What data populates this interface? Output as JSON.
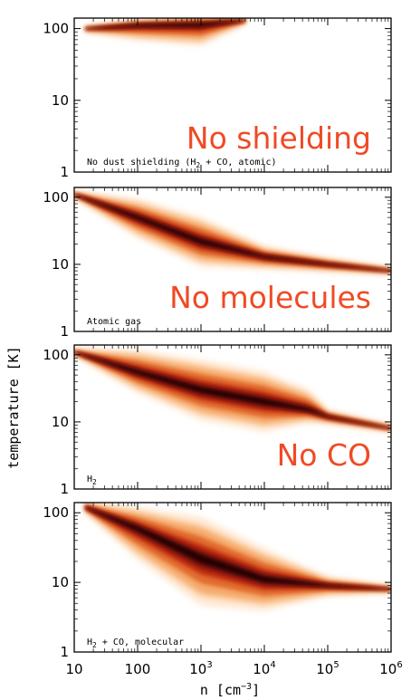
{
  "chart_data": {
    "type": "heatmap",
    "xlabel": "n [cm",
    "xlabel_sup": "−3",
    "xlabel_close": "]",
    "ylabel": "temperature [K]",
    "x_scale": "log",
    "y_scale": "log",
    "xlim": [
      10,
      1000000
    ],
    "ylim": [
      1,
      140
    ],
    "x_ticks": [
      {
        "value": 10,
        "base": "10",
        "exp": ""
      },
      {
        "value": 100,
        "base": "100",
        "exp": ""
      },
      {
        "value": 1000,
        "base": "10",
        "exp": "3"
      },
      {
        "value": 10000,
        "base": "10",
        "exp": "4"
      },
      {
        "value": 100000,
        "base": "10",
        "exp": "5"
      },
      {
        "value": 1000000,
        "base": "10",
        "exp": "6"
      }
    ],
    "y_ticks": [
      {
        "value": 1,
        "label": "1"
      },
      {
        "value": 10,
        "label": "10"
      },
      {
        "value": 100,
        "label": "100"
      }
    ],
    "colors": [
      "#ffe2c6",
      "#f3a05a",
      "#e0652a",
      "#b9280f",
      "#6d0a08",
      "#1a0303"
    ],
    "panels": [
      {
        "label": "No dust shielding (H",
        "label_sub": "2",
        "label_tail": " + CO, atomic)",
        "overlay": "No shielding",
        "ridge": [
          [
            15,
            100
          ],
          [
            100,
            112
          ],
          [
            1000,
            115
          ],
          [
            5000,
            130
          ]
        ],
        "spread_low": [
          [
            15,
            0.03
          ],
          [
            100,
            0.14
          ],
          [
            1000,
            0.2
          ],
          [
            5000,
            0.03
          ]
        ],
        "spread_high": [
          [
            15,
            0.02
          ],
          [
            100,
            0.05
          ],
          [
            1000,
            0.08
          ],
          [
            5000,
            0.02
          ]
        ]
      },
      {
        "label": "Atomic gas",
        "label_sub": "",
        "label_tail": "",
        "overlay": "No molecules",
        "ridge": [
          [
            10,
            110
          ],
          [
            100,
            50
          ],
          [
            1000,
            22
          ],
          [
            10000,
            13
          ],
          [
            100000,
            10
          ],
          [
            1000000,
            8
          ]
        ],
        "spread_low": [
          [
            10,
            0.03
          ],
          [
            100,
            0.2
          ],
          [
            1000,
            0.25
          ],
          [
            10000,
            0.12
          ],
          [
            100000,
            0.07
          ],
          [
            1000000,
            0.03
          ]
        ],
        "spread_high": [
          [
            10,
            0.03
          ],
          [
            100,
            0.18
          ],
          [
            1000,
            0.24
          ],
          [
            10000,
            0.1
          ],
          [
            100000,
            0.06
          ],
          [
            1000000,
            0.03
          ]
        ]
      },
      {
        "label": "H",
        "label_sub": "2",
        "label_tail": "",
        "overlay": "No CO",
        "ridge": [
          [
            10,
            110
          ],
          [
            100,
            55
          ],
          [
            1000,
            30
          ],
          [
            10000,
            20
          ],
          [
            50000,
            15
          ],
          [
            100000,
            12
          ],
          [
            1000000,
            8
          ]
        ],
        "spread_low": [
          [
            10,
            0.03
          ],
          [
            100,
            0.2
          ],
          [
            1000,
            0.3
          ],
          [
            10000,
            0.3
          ],
          [
            50000,
            0.12
          ],
          [
            100000,
            0.07
          ],
          [
            1000000,
            0.03
          ]
        ],
        "spread_high": [
          [
            10,
            0.03
          ],
          [
            100,
            0.22
          ],
          [
            1000,
            0.3
          ],
          [
            10000,
            0.3
          ],
          [
            50000,
            0.2
          ],
          [
            100000,
            0.06
          ],
          [
            1000000,
            0.03
          ]
        ]
      },
      {
        "label": "H",
        "label_sub": "2",
        "label_tail": " + CO, molecular",
        "overlay": "",
        "ridge": [
          [
            15,
            120
          ],
          [
            100,
            60
          ],
          [
            1000,
            22
          ],
          [
            10000,
            11
          ],
          [
            100000,
            9
          ],
          [
            1000000,
            8
          ]
        ],
        "spread_low": [
          [
            15,
            0.05
          ],
          [
            100,
            0.3
          ],
          [
            1000,
            0.45
          ],
          [
            10000,
            0.3
          ],
          [
            100000,
            0.1
          ],
          [
            1000000,
            0.03
          ]
        ],
        "spread_high": [
          [
            15,
            0.05
          ],
          [
            100,
            0.2
          ],
          [
            1000,
            0.4
          ],
          [
            10000,
            0.3
          ],
          [
            100000,
            0.08
          ],
          [
            1000000,
            0.03
          ]
        ]
      }
    ]
  }
}
